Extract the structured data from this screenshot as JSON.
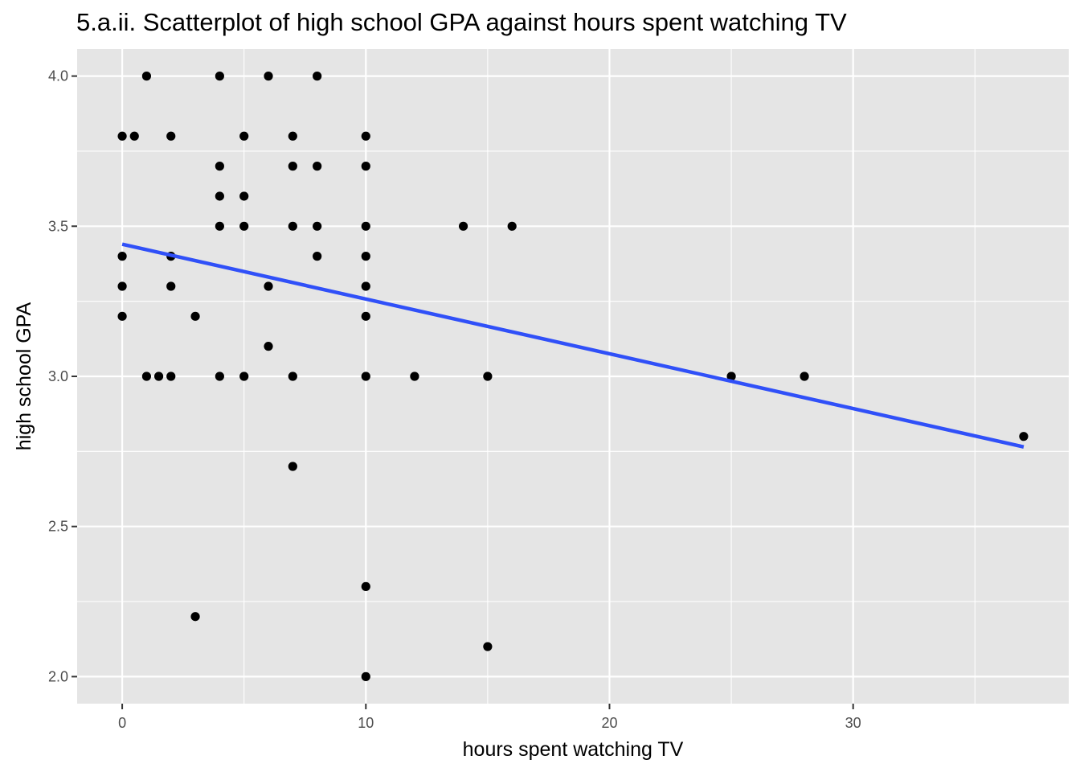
{
  "chart_data": {
    "type": "scatter",
    "title": "5.a.ii. Scatterplot of high school GPA against hours spent watching TV",
    "xlabel": "hours spent watching TV",
    "ylabel": "high school GPA",
    "xlim": [
      -1.85,
      38.85
    ],
    "ylim": [
      1.91,
      4.09
    ],
    "x_ticks": [
      0,
      10,
      20,
      30
    ],
    "x_tick_labels": [
      "0",
      "10",
      "20",
      "30"
    ],
    "y_ticks": [
      2.0,
      2.5,
      3.0,
      3.5,
      4.0
    ],
    "y_tick_labels": [
      "2.0",
      "2.5",
      "3.0",
      "3.5",
      "4.0"
    ],
    "grid": true,
    "colors": {
      "panel_background": "#e5e5e5",
      "grid": "#ffffff",
      "points": "#000000",
      "fit_line": "#3050f8"
    },
    "points": [
      {
        "x": 1,
        "y": 4.0
      },
      {
        "x": 4,
        "y": 4.0
      },
      {
        "x": 6,
        "y": 4.0
      },
      {
        "x": 8,
        "y": 4.0
      },
      {
        "x": 0,
        "y": 3.8
      },
      {
        "x": 0.5,
        "y": 3.8
      },
      {
        "x": 2,
        "y": 3.8
      },
      {
        "x": 5,
        "y": 3.8
      },
      {
        "x": 7,
        "y": 3.8
      },
      {
        "x": 10,
        "y": 3.8
      },
      {
        "x": 4,
        "y": 3.7
      },
      {
        "x": 7,
        "y": 3.7
      },
      {
        "x": 8,
        "y": 3.7
      },
      {
        "x": 10,
        "y": 3.7
      },
      {
        "x": 4,
        "y": 3.6
      },
      {
        "x": 5,
        "y": 3.6
      },
      {
        "x": 4,
        "y": 3.5
      },
      {
        "x": 5,
        "y": 3.5
      },
      {
        "x": 7,
        "y": 3.5
      },
      {
        "x": 8,
        "y": 3.5
      },
      {
        "x": 10,
        "y": 3.5
      },
      {
        "x": 14,
        "y": 3.5
      },
      {
        "x": 16,
        "y": 3.5
      },
      {
        "x": 0,
        "y": 3.4
      },
      {
        "x": 2,
        "y": 3.4
      },
      {
        "x": 8,
        "y": 3.4
      },
      {
        "x": 10,
        "y": 3.4
      },
      {
        "x": 0,
        "y": 3.3
      },
      {
        "x": 2,
        "y": 3.3
      },
      {
        "x": 6,
        "y": 3.3
      },
      {
        "x": 10,
        "y": 3.3
      },
      {
        "x": 0,
        "y": 3.2
      },
      {
        "x": 3,
        "y": 3.2
      },
      {
        "x": 10,
        "y": 3.2
      },
      {
        "x": 6,
        "y": 3.1
      },
      {
        "x": 1,
        "y": 3.0
      },
      {
        "x": 1.5,
        "y": 3.0
      },
      {
        "x": 2,
        "y": 3.0
      },
      {
        "x": 4,
        "y": 3.0
      },
      {
        "x": 5,
        "y": 3.0
      },
      {
        "x": 7,
        "y": 3.0
      },
      {
        "x": 10,
        "y": 3.0
      },
      {
        "x": 12,
        "y": 3.0
      },
      {
        "x": 15,
        "y": 3.0
      },
      {
        "x": 25,
        "y": 3.0
      },
      {
        "x": 28,
        "y": 3.0
      },
      {
        "x": 37,
        "y": 2.8
      },
      {
        "x": 7,
        "y": 2.7
      },
      {
        "x": 10,
        "y": 2.3
      },
      {
        "x": 3,
        "y": 2.2
      },
      {
        "x": 15,
        "y": 2.1
      },
      {
        "x": 10,
        "y": 2.0
      }
    ],
    "fit_line": {
      "x": [
        0,
        37
      ],
      "y": [
        3.44,
        2.765
      ]
    }
  }
}
